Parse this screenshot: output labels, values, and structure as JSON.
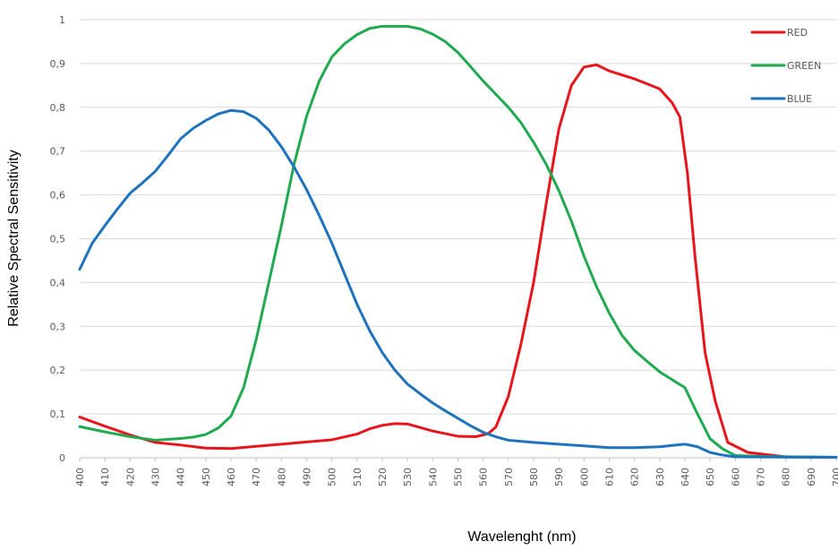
{
  "chart_data": {
    "type": "line",
    "title": "",
    "xlabel": "Wavelenght (nm)",
    "ylabel": "Relative Spectral Sensitivity",
    "xlim": [
      400,
      700
    ],
    "ylim": [
      0,
      1
    ],
    "grid": "horizontal",
    "legend_position": "top-right",
    "x_ticks": [
      "400",
      "410",
      "420",
      "430",
      "440",
      "450",
      "460",
      "470",
      "480",
      "490",
      "500",
      "510",
      "520",
      "530",
      "540",
      "550",
      "560",
      "570",
      "580",
      "590",
      "600",
      "610",
      "620",
      "630",
      "640",
      "650",
      "660",
      "670",
      "680",
      "690",
      "700"
    ],
    "y_ticks": [
      "0",
      "0,1",
      "0,2",
      "0,3",
      "0,4",
      "0,5",
      "0,6",
      "0,7",
      "0,8",
      "0,9",
      "1"
    ],
    "series": [
      {
        "name": "RED",
        "color": "#e8161c",
        "points": [
          [
            400,
            0.093
          ],
          [
            410,
            0.072
          ],
          [
            420,
            0.052
          ],
          [
            430,
            0.035
          ],
          [
            440,
            0.029
          ],
          [
            450,
            0.022
          ],
          [
            460,
            0.021
          ],
          [
            470,
            0.026
          ],
          [
            480,
            0.031
          ],
          [
            490,
            0.036
          ],
          [
            500,
            0.041
          ],
          [
            510,
            0.054
          ],
          [
            515,
            0.066
          ],
          [
            520,
            0.074
          ],
          [
            525,
            0.078
          ],
          [
            530,
            0.077
          ],
          [
            540,
            0.061
          ],
          [
            550,
            0.049
          ],
          [
            557,
            0.048
          ],
          [
            562,
            0.055
          ],
          [
            565,
            0.07
          ],
          [
            570,
            0.14
          ],
          [
            575,
            0.26
          ],
          [
            580,
            0.4
          ],
          [
            585,
            0.58
          ],
          [
            590,
            0.75
          ],
          [
            595,
            0.85
          ],
          [
            600,
            0.892
          ],
          [
            605,
            0.897
          ],
          [
            610,
            0.883
          ],
          [
            620,
            0.865
          ],
          [
            630,
            0.842
          ],
          [
            635,
            0.81
          ],
          [
            638,
            0.778
          ],
          [
            641,
            0.65
          ],
          [
            644,
            0.46
          ],
          [
            648,
            0.24
          ],
          [
            652,
            0.13
          ],
          [
            657,
            0.035
          ],
          [
            665,
            0.012
          ],
          [
            680,
            0.002
          ],
          [
            700,
            0.001
          ]
        ]
      },
      {
        "name": "GREEN",
        "color": "#1faa4f",
        "points": [
          [
            400,
            0.071
          ],
          [
            410,
            0.059
          ],
          [
            420,
            0.048
          ],
          [
            430,
            0.04
          ],
          [
            440,
            0.044
          ],
          [
            445,
            0.047
          ],
          [
            450,
            0.053
          ],
          [
            455,
            0.068
          ],
          [
            460,
            0.095
          ],
          [
            465,
            0.16
          ],
          [
            470,
            0.27
          ],
          [
            475,
            0.4
          ],
          [
            480,
            0.53
          ],
          [
            485,
            0.67
          ],
          [
            490,
            0.78
          ],
          [
            495,
            0.86
          ],
          [
            500,
            0.915
          ],
          [
            505,
            0.945
          ],
          [
            510,
            0.966
          ],
          [
            515,
            0.98
          ],
          [
            520,
            0.985
          ],
          [
            530,
            0.985
          ],
          [
            535,
            0.979
          ],
          [
            540,
            0.967
          ],
          [
            545,
            0.95
          ],
          [
            550,
            0.925
          ],
          [
            555,
            0.893
          ],
          [
            560,
            0.86
          ],
          [
            565,
            0.83
          ],
          [
            570,
            0.8
          ],
          [
            575,
            0.765
          ],
          [
            580,
            0.72
          ],
          [
            585,
            0.67
          ],
          [
            590,
            0.61
          ],
          [
            595,
            0.54
          ],
          [
            600,
            0.46
          ],
          [
            605,
            0.39
          ],
          [
            610,
            0.33
          ],
          [
            615,
            0.28
          ],
          [
            620,
            0.245
          ],
          [
            625,
            0.22
          ],
          [
            630,
            0.196
          ],
          [
            635,
            0.178
          ],
          [
            640,
            0.16
          ],
          [
            645,
            0.1
          ],
          [
            650,
            0.043
          ],
          [
            655,
            0.02
          ],
          [
            660,
            0.005
          ],
          [
            670,
            0.003
          ],
          [
            700,
            0.001
          ]
        ]
      },
      {
        "name": "BLUE",
        "color": "#1e73be",
        "points": [
          [
            400,
            0.43
          ],
          [
            405,
            0.49
          ],
          [
            410,
            0.53
          ],
          [
            415,
            0.568
          ],
          [
            420,
            0.604
          ],
          [
            425,
            0.628
          ],
          [
            430,
            0.654
          ],
          [
            435,
            0.69
          ],
          [
            440,
            0.728
          ],
          [
            445,
            0.752
          ],
          [
            450,
            0.77
          ],
          [
            455,
            0.785
          ],
          [
            460,
            0.793
          ],
          [
            465,
            0.79
          ],
          [
            470,
            0.775
          ],
          [
            475,
            0.748
          ],
          [
            480,
            0.71
          ],
          [
            485,
            0.664
          ],
          [
            490,
            0.612
          ],
          [
            495,
            0.553
          ],
          [
            500,
            0.49
          ],
          [
            505,
            0.42
          ],
          [
            510,
            0.35
          ],
          [
            515,
            0.29
          ],
          [
            520,
            0.24
          ],
          [
            525,
            0.2
          ],
          [
            530,
            0.168
          ],
          [
            535,
            0.146
          ],
          [
            540,
            0.125
          ],
          [
            545,
            0.107
          ],
          [
            550,
            0.09
          ],
          [
            555,
            0.073
          ],
          [
            560,
            0.058
          ],
          [
            565,
            0.048
          ],
          [
            570,
            0.04
          ],
          [
            580,
            0.035
          ],
          [
            590,
            0.031
          ],
          [
            600,
            0.027
          ],
          [
            610,
            0.023
          ],
          [
            620,
            0.023
          ],
          [
            630,
            0.025
          ],
          [
            640,
            0.031
          ],
          [
            645,
            0.025
          ],
          [
            650,
            0.012
          ],
          [
            655,
            0.006
          ],
          [
            660,
            0.002
          ],
          [
            700,
            0.001
          ]
        ]
      }
    ]
  }
}
